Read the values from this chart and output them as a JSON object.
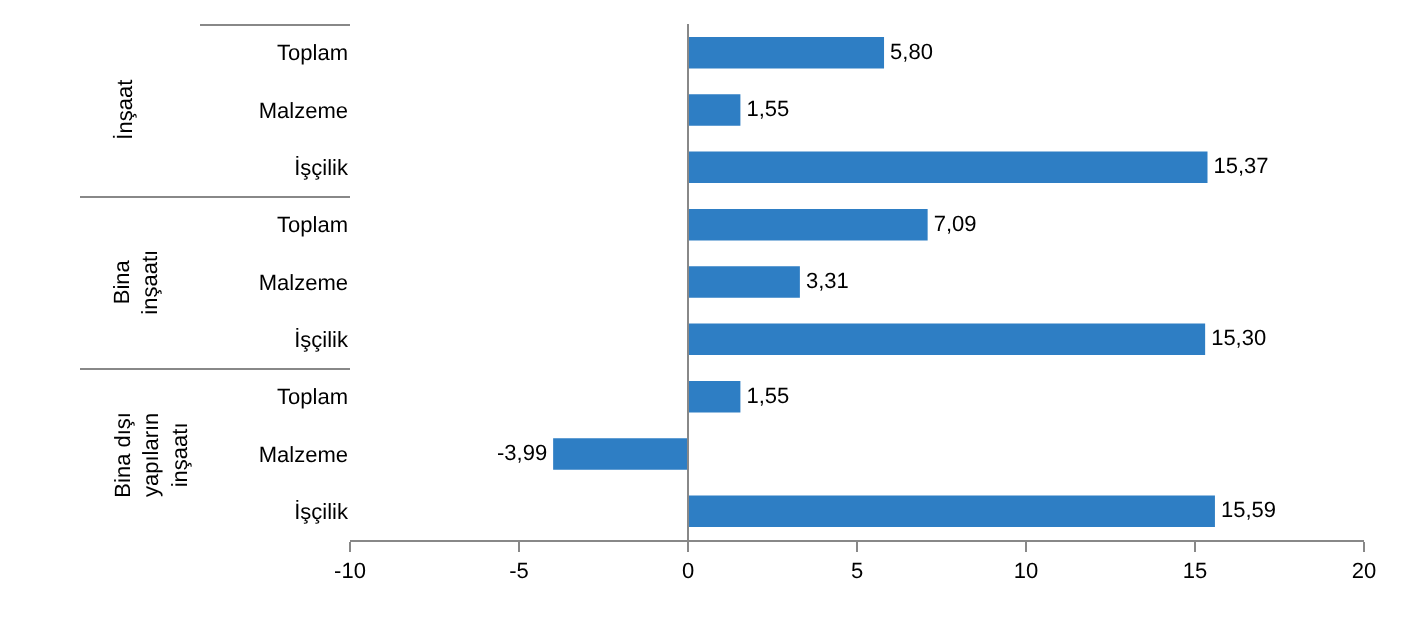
{
  "chart_data": {
    "type": "bar",
    "orientation": "horizontal",
    "categories": [
      "Toplam",
      "Malzeme",
      "İşçilik",
      "Toplam",
      "Malzeme",
      "İşçilik",
      "Toplam",
      "Malzeme",
      "İşçilik"
    ],
    "values": [
      5.8,
      1.55,
      15.37,
      7.09,
      3.31,
      15.3,
      1.55,
      -3.99,
      15.59
    ],
    "value_labels": [
      "5,80",
      "1,55",
      "15,37",
      "7,09",
      "3,31",
      "15,30",
      "1,55",
      "-3,99",
      "15,59"
    ],
    "color": "#2e7ec4",
    "xlim": [
      -10,
      20
    ],
    "xticks": [
      -10,
      -5,
      0,
      5,
      10,
      15,
      20
    ],
    "annotations": [
      "İnşaat",
      "Bina inşaatı",
      "Bina dışı yapıların inşaatı"
    ],
    "ref_lines": [
      {
        "axis": "x",
        "value": 0
      }
    ],
    "grid": false,
    "legend": false
  }
}
